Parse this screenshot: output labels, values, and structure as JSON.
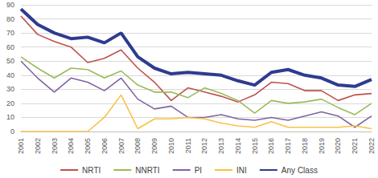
{
  "chart_data": {
    "type": "line",
    "categories": [
      "2001",
      "2002",
      "2003",
      "2004",
      "2005",
      "2006",
      "2007",
      "2008",
      "2009",
      "2010",
      "2011",
      "2012",
      "2013",
      "2014",
      "2015",
      "2016",
      "2017",
      "2018",
      "2019",
      "2020",
      "2021",
      "2022"
    ],
    "series": [
      {
        "name": "NRTI",
        "color": "#c0504d",
        "values": [
          82,
          69,
          64,
          60,
          49,
          52,
          58,
          45,
          35,
          22,
          31,
          28,
          25,
          21,
          26,
          35,
          34,
          29,
          29,
          22,
          26,
          27
        ]
      },
      {
        "name": "NNRTI",
        "color": "#9bbb59",
        "values": [
          53,
          45,
          38,
          45,
          44,
          38,
          43,
          33,
          28,
          28,
          24,
          31,
          27,
          22,
          13,
          22,
          20,
          21,
          23,
          17,
          12,
          20
        ]
      },
      {
        "name": "PI",
        "color": "#8064a2",
        "values": [
          50,
          38,
          28,
          38,
          35,
          29,
          38,
          23,
          16,
          18,
          10,
          10,
          12,
          9,
          8,
          10,
          8,
          11,
          14,
          11,
          3,
          11
        ]
      },
      {
        "name": "INI",
        "color": "#f9c146",
        "values": [
          0,
          0,
          0,
          0,
          0,
          10,
          26,
          2,
          9,
          9,
          10,
          9,
          6,
          4,
          3,
          7,
          3,
          3,
          3,
          3,
          4,
          2
        ]
      },
      {
        "name": "Any Class",
        "color": "#2e3b8f",
        "values": [
          87,
          76,
          70,
          66,
          67,
          63,
          70,
          53,
          45,
          41,
          42,
          41,
          40,
          36,
          33,
          42,
          44,
          40,
          38,
          33,
          32,
          37
        ]
      }
    ],
    "ylim": [
      0,
      90
    ],
    "yticks": [
      0,
      10,
      20,
      30,
      40,
      50,
      60,
      70,
      80,
      90
    ],
    "grid": true,
    "legend": "bottom"
  }
}
